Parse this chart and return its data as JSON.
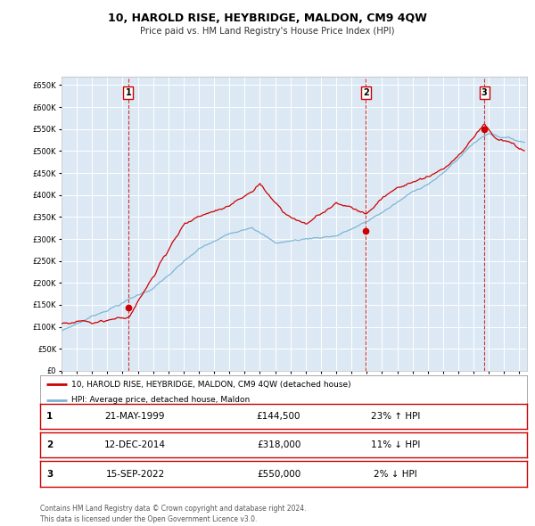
{
  "title": "10, HAROLD RISE, HEYBRIDGE, MALDON, CM9 4QW",
  "subtitle": "Price paid vs. HM Land Registry's House Price Index (HPI)",
  "ylim": [
    0,
    670000
  ],
  "yticks": [
    0,
    50000,
    100000,
    150000,
    200000,
    250000,
    300000,
    350000,
    400000,
    450000,
    500000,
    550000,
    600000,
    650000
  ],
  "hpi_color": "#7ab3d4",
  "price_color": "#cc0000",
  "plot_bg": "#dce9f5",
  "grid_color": "#c0d0e0",
  "sale_markers": [
    {
      "label": "1",
      "date_x": 1999.38,
      "price": 144500,
      "vline_x": 1999.38
    },
    {
      "label": "2",
      "date_x": 2014.95,
      "price": 318000,
      "vline_x": 2014.95
    },
    {
      "label": "3",
      "date_x": 2022.71,
      "price": 550000,
      "vline_x": 2022.71
    }
  ],
  "legend_price_label": "10, HAROLD RISE, HEYBRIDGE, MALDON, CM9 4QW (detached house)",
  "legend_hpi_label": "HPI: Average price, detached house, Maldon",
  "table_rows": [
    {
      "num": "1",
      "date": "21-MAY-1999",
      "price": "£144,500",
      "pct": "23% ↑ HPI"
    },
    {
      "num": "2",
      "date": "12-DEC-2014",
      "price": "£318,000",
      "pct": "11% ↓ HPI"
    },
    {
      "num": "3",
      "date": "15-SEP-2022",
      "price": "£550,000",
      "pct": "2% ↓ HPI"
    }
  ],
  "footer": "Contains HM Land Registry data © Crown copyright and database right 2024.\nThis data is licensed under the Open Government Licence v3.0.",
  "xmin": 1995.0,
  "xmax": 2025.5
}
